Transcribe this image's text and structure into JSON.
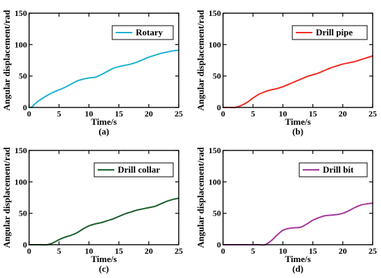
{
  "chart_data": [
    {
      "type": "line",
      "caption": "(a)",
      "xlabel": "Time/s",
      "ylabel": "Angular displacement/rad",
      "xlim": [
        0,
        25
      ],
      "ylim": [
        0,
        150
      ],
      "xticks": [
        0,
        5,
        10,
        15,
        20,
        25
      ],
      "yticks": [
        0,
        50,
        100,
        150
      ],
      "legend_position": "top-right",
      "series": [
        {
          "name": "Rotary",
          "color": "#1ab2cf",
          "x": [
            0,
            0.5,
            1,
            2,
            3,
            4,
            5,
            6,
            7,
            8,
            9,
            10,
            11,
            12,
            13,
            14,
            15,
            16,
            17,
            18,
            19,
            20,
            21,
            22,
            23,
            24,
            25
          ],
          "y": [
            0,
            1,
            6,
            13,
            19,
            24,
            28,
            32,
            37,
            42,
            45,
            47,
            48,
            52,
            57,
            62,
            65,
            67,
            69,
            72,
            76,
            80,
            83,
            86,
            88,
            90,
            91
          ]
        }
      ]
    },
    {
      "type": "line",
      "caption": "(b)",
      "xlabel": "Time/s",
      "ylabel": "Angular displacement/rad",
      "xlim": [
        0,
        25
      ],
      "ylim": [
        0,
        150
      ],
      "xticks": [
        0,
        5,
        10,
        15,
        20,
        25
      ],
      "yticks": [
        0,
        50,
        100,
        150
      ],
      "legend_position": "top-right",
      "series": [
        {
          "name": "Drill pipe",
          "color": "#ee2a1f",
          "x": [
            0,
            1,
            2,
            3,
            4,
            5,
            6,
            7,
            8,
            9,
            10,
            11,
            12,
            13,
            14,
            15,
            16,
            17,
            18,
            19,
            20,
            21,
            22,
            23,
            24,
            25
          ],
          "y": [
            0,
            0,
            0,
            3,
            8,
            15,
            21,
            25,
            28,
            30,
            33,
            37,
            41,
            45,
            49,
            52,
            55,
            59,
            63,
            66,
            69,
            71,
            73,
            76,
            79,
            82
          ]
        }
      ]
    },
    {
      "type": "line",
      "caption": "(c)",
      "xlabel": "Time/s",
      "ylabel": "Angular displacement/rad",
      "xlim": [
        0,
        25
      ],
      "ylim": [
        0,
        150
      ],
      "xticks": [
        0,
        5,
        10,
        15,
        20,
        25
      ],
      "yticks": [
        0,
        50,
        100,
        150
      ],
      "legend_position": "top-right",
      "series": [
        {
          "name": "Drill collar",
          "color": "#1b5e2b",
          "x": [
            0,
            1,
            2,
            3,
            4,
            5,
            6,
            7,
            8,
            9,
            10,
            11,
            12,
            13,
            14,
            15,
            16,
            17,
            18,
            19,
            20,
            21,
            22,
            23,
            24,
            25
          ],
          "y": [
            0,
            0,
            0,
            0,
            3,
            8,
            12,
            15,
            19,
            25,
            30,
            33,
            35,
            38,
            41,
            45,
            49,
            52,
            55,
            57,
            59,
            61,
            65,
            69,
            72,
            74
          ]
        }
      ]
    },
    {
      "type": "line",
      "caption": "(d)",
      "xlabel": "Time/s",
      "ylabel": "Angular displacement/rad",
      "xlim": [
        0,
        25
      ],
      "ylim": [
        0,
        150
      ],
      "xticks": [
        0,
        5,
        10,
        15,
        20,
        25
      ],
      "yticks": [
        0,
        50,
        100,
        150
      ],
      "legend_position": "top-right",
      "series": [
        {
          "name": "Drill bit",
          "color": "#a5359a",
          "x": [
            0,
            1,
            2,
            3,
            4,
            5,
            6,
            7,
            8,
            9,
            10,
            11,
            12,
            13,
            14,
            15,
            16,
            17,
            18,
            19,
            20,
            21,
            22,
            23,
            24,
            25
          ],
          "y": [
            0,
            0,
            0,
            0,
            0,
            0,
            0,
            0,
            6,
            15,
            23,
            26,
            27,
            28,
            33,
            39,
            43,
            46,
            47,
            48,
            50,
            54,
            59,
            63,
            65,
            66
          ]
        }
      ]
    }
  ]
}
